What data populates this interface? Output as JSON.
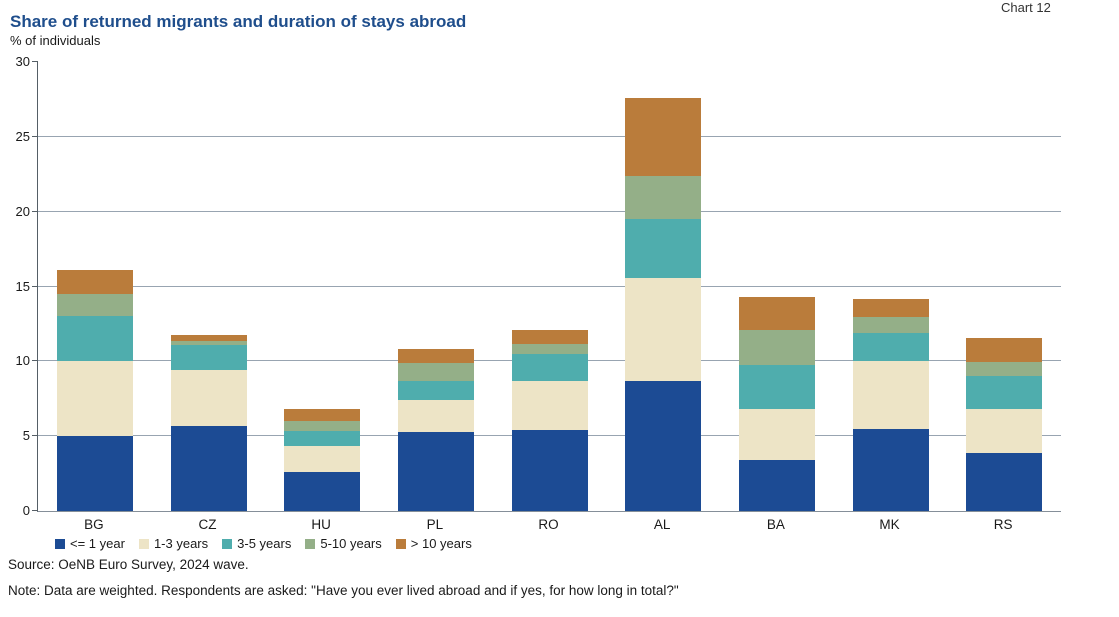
{
  "header": {
    "chart_label": "Chart 12"
  },
  "chart_data": {
    "type": "bar",
    "stacked": true,
    "title": "Share of returned migrants and duration of stays abroad",
    "subtitle": "% of individuals",
    "categories": [
      "BG",
      "CZ",
      "HU",
      "PL",
      "RO",
      "AL",
      "BA",
      "MK",
      "RS"
    ],
    "series": [
      {
        "name": "<= 1 year",
        "color": "#1C4B94",
        "values": [
          5.0,
          5.7,
          2.6,
          5.3,
          5.4,
          8.7,
          3.4,
          5.5,
          3.9
        ]
      },
      {
        "name": "1-3 years",
        "color": "#EDE4C6",
        "values": [
          5.0,
          3.7,
          1.75,
          2.1,
          3.3,
          6.9,
          3.45,
          4.5,
          2.9
        ]
      },
      {
        "name": "3-5 years",
        "color": "#4FADAD",
        "values": [
          3.0,
          1.7,
          1.0,
          1.3,
          1.8,
          3.9,
          2.9,
          1.9,
          2.2
        ]
      },
      {
        "name": "5-10 years",
        "color": "#94AF88",
        "values": [
          1.5,
          0.25,
          0.65,
          1.2,
          0.65,
          2.9,
          2.35,
          1.05,
          0.95
        ]
      },
      {
        "name": "> 10 years",
        "color": "#BA7C3B",
        "values": [
          1.6,
          0.4,
          0.8,
          0.9,
          0.95,
          5.2,
          2.2,
          1.2,
          1.6
        ]
      }
    ],
    "ylim": [
      0,
      30
    ],
    "yticks": [
      0,
      5,
      10,
      15,
      20,
      25,
      30
    ],
    "grid": true,
    "legend_position": "bottom",
    "colors": {
      "title": "#1F4E8C",
      "gridline": "#98a4b1",
      "axis": "#555e66"
    }
  },
  "footer": {
    "source": "Source: OeNB Euro Survey, 2024 wave.",
    "note": "Note: Data are weighted. Respondents are asked: \"Have you ever lived abroad and if yes, for how long in total?\""
  }
}
